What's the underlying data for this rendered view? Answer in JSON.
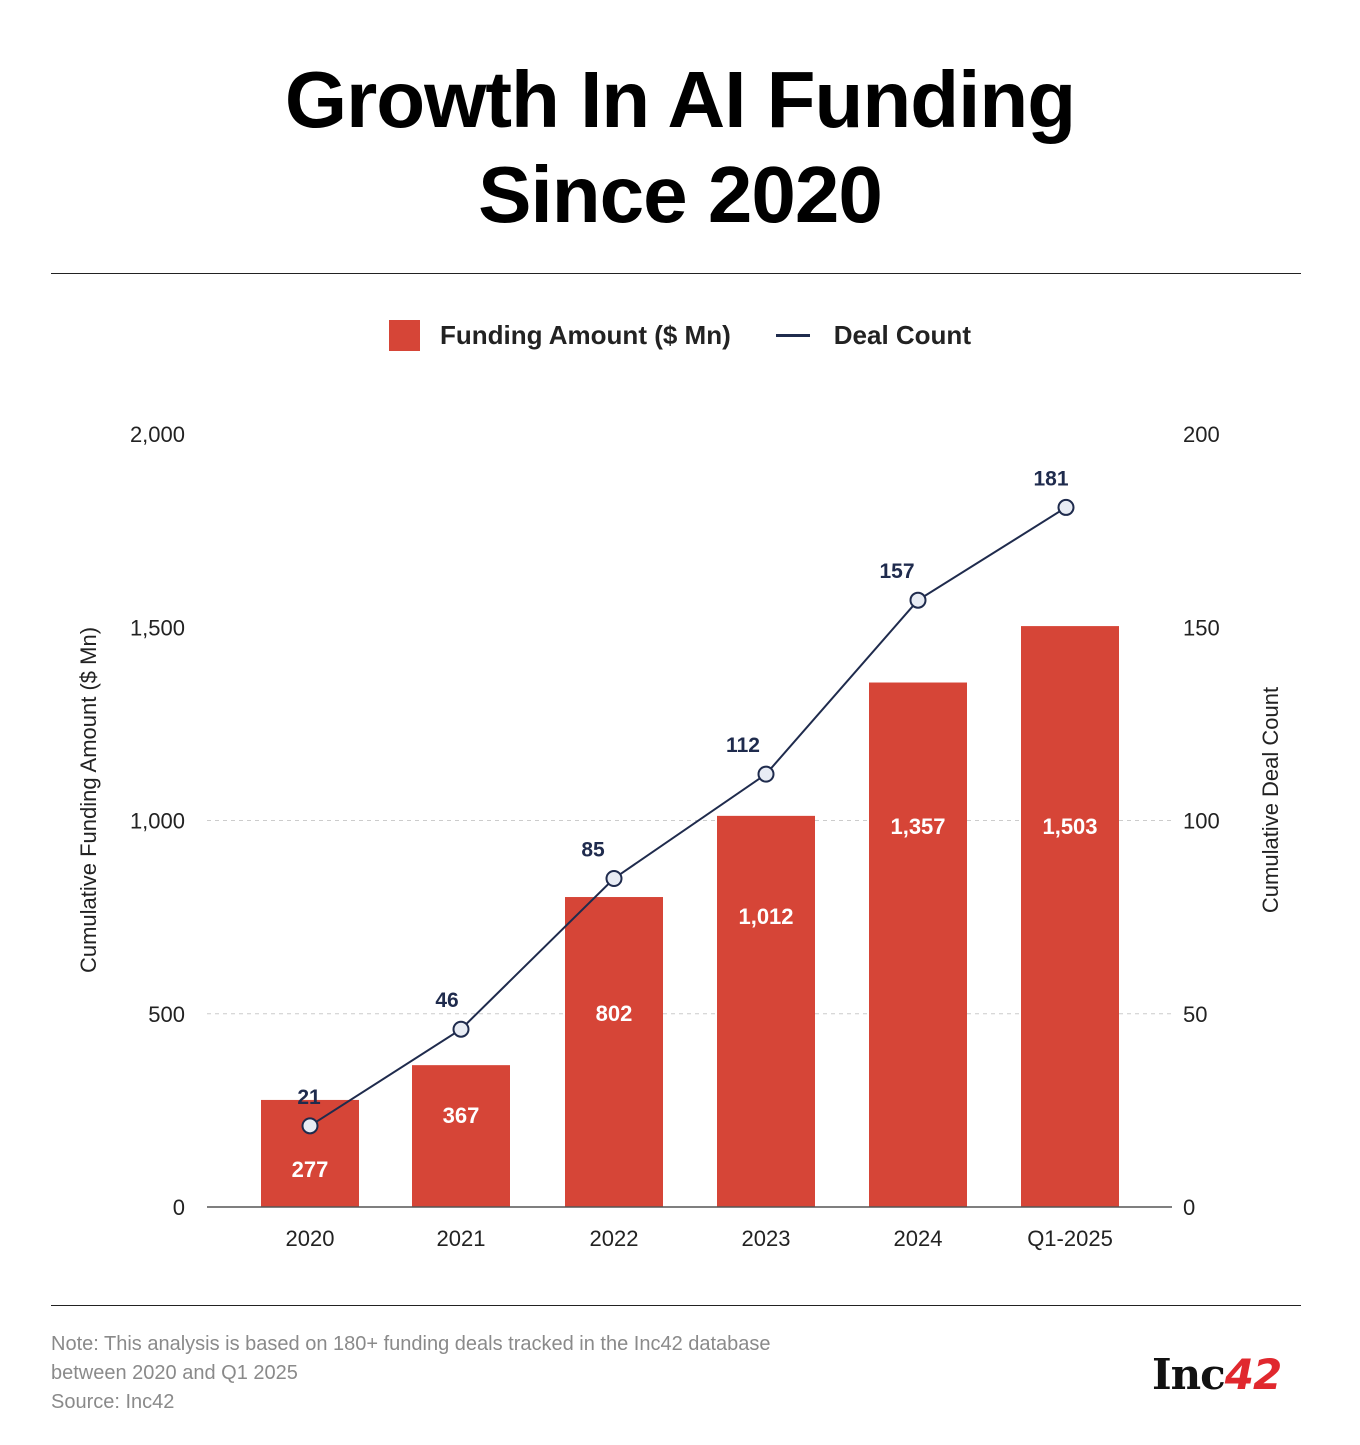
{
  "title_line1": "Growth In AI Funding",
  "title_line2": "Since 2020",
  "legend": {
    "bar": "Funding Amount ($ Mn)",
    "line": "Deal Count"
  },
  "note_line1": "Note: This analysis is based on 180+ funding deals tracked in the Inc42 database",
  "note_line2": "between 2020 and Q1 2025",
  "source": "Source: Inc42",
  "logo": "Inc42",
  "chart_data": {
    "type": "bar+line",
    "categories": [
      "2020",
      "2021",
      "2022",
      "2023",
      "2024",
      "Q1-2025"
    ],
    "series": [
      {
        "name": "Funding Amount ($ Mn)",
        "type": "bar",
        "axis": "left",
        "values": [
          277,
          367,
          802,
          1012,
          1357,
          1503
        ],
        "labels": [
          "277",
          "367",
          "802",
          "1,012",
          "1,357",
          "1,503"
        ],
        "color": "#d64537"
      },
      {
        "name": "Deal Count",
        "type": "line",
        "axis": "right",
        "values": [
          21,
          46,
          85,
          112,
          157,
          181
        ],
        "color": "#1f2b4d"
      }
    ],
    "ylabel": "Cumulative Funding Amount ($ Mn)",
    "y2label": "Cumulative Deal Count",
    "ylim": [
      0,
      2000
    ],
    "y2lim": [
      0,
      200
    ],
    "yticks": [
      "0",
      "500",
      "1,000",
      "1,500",
      "2,000"
    ],
    "y2ticks": [
      "0",
      "50",
      "100",
      "150",
      "200"
    ],
    "ytick_values": [
      0,
      500,
      1000,
      1500,
      2000
    ],
    "gridlines": [
      500,
      1000
    ],
    "legend_position": "top"
  }
}
